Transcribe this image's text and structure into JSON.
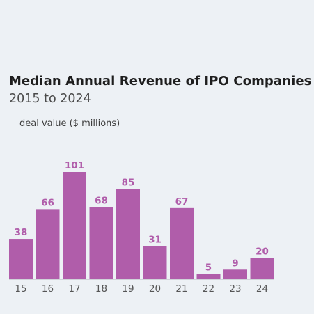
{
  "title": "Median Annual Revenue of IPO Companies",
  "subtitle": "2015 to 2024",
  "unit_label": "deal value ($ millions)",
  "colors": {
    "bar": "#b05daa",
    "value_label": "#b05daa",
    "background": "#edf1f5",
    "axis": "#cfd3d8"
  },
  "chart_data": {
    "type": "bar",
    "categories": [
      "15",
      "16",
      "17",
      "18",
      "19",
      "20",
      "21",
      "22",
      "23",
      "24"
    ],
    "values": [
      38,
      66,
      101,
      68,
      85,
      31,
      67,
      5,
      9,
      20
    ],
    "title": "Median Annual Revenue of IPO Companies",
    "subtitle": "2015 to 2024",
    "ylabel": "deal value ($ millions)",
    "ylim": [
      0,
      101
    ],
    "grid": false,
    "legend": "none"
  }
}
